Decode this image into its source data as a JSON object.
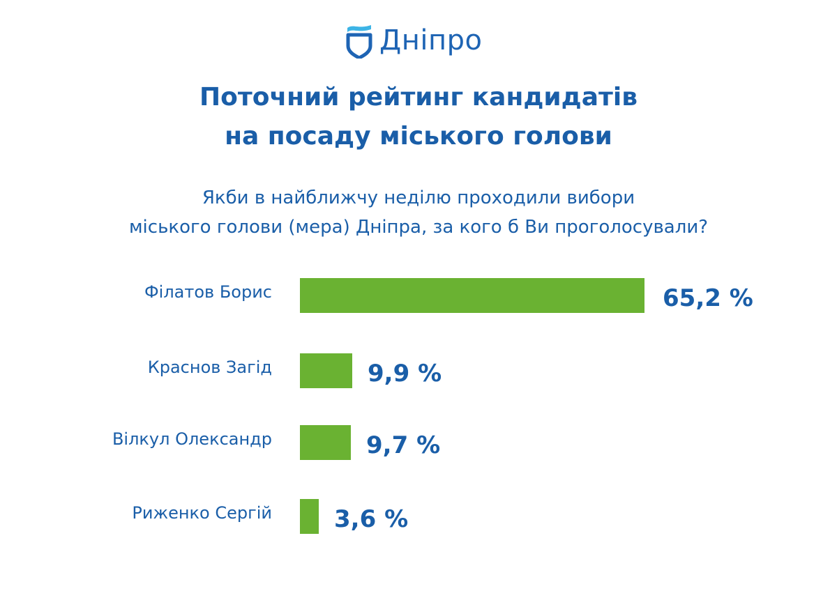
{
  "logo": {
    "text": "Дніпро",
    "icon": "shield-wave-icon",
    "colors": {
      "wave": "#3cb4e6",
      "shield": "#1e64b4"
    }
  },
  "title": {
    "line1": "Поточний рейтинг кандидатів",
    "line2": "на посаду міського голови"
  },
  "question": {
    "line1": "Якби в найближчу неділю проходили вибори",
    "line2": "міського голови (мера) Дніпра, за кого б Ви проголосували?"
  },
  "colors": {
    "bar": "#6ab232",
    "text": "#1a5ea8"
  },
  "rows": [
    {
      "name": "Філатов Борис",
      "value_label": "65,2 %"
    },
    {
      "name": "Краснов Загід",
      "value_label": "9,9 %"
    },
    {
      "name": "Вілкул Олександр",
      "value_label": "9,7 %"
    },
    {
      "name": "Риженко Сергій",
      "value_label": "3,6 %"
    }
  ],
  "chart_data": {
    "type": "bar",
    "orientation": "horizontal",
    "title": "Поточний рейтинг кандидатів на посаду міського голови",
    "subtitle": "Якби в найближчу неділю проходили вибори міського голови (мера) Дніпра, за кого б Ви проголосували?",
    "categories": [
      "Філатов Борис",
      "Краснов Загід",
      "Вілкул Олександр",
      "Риженко Сергій"
    ],
    "values": [
      65.2,
      9.9,
      9.7,
      3.6
    ],
    "value_labels": [
      "65,2 %",
      "9,9 %",
      "9,7 %",
      "3,6 %"
    ],
    "unit": "%",
    "xlabel": "",
    "ylabel": "",
    "grid": false,
    "legend": null
  }
}
